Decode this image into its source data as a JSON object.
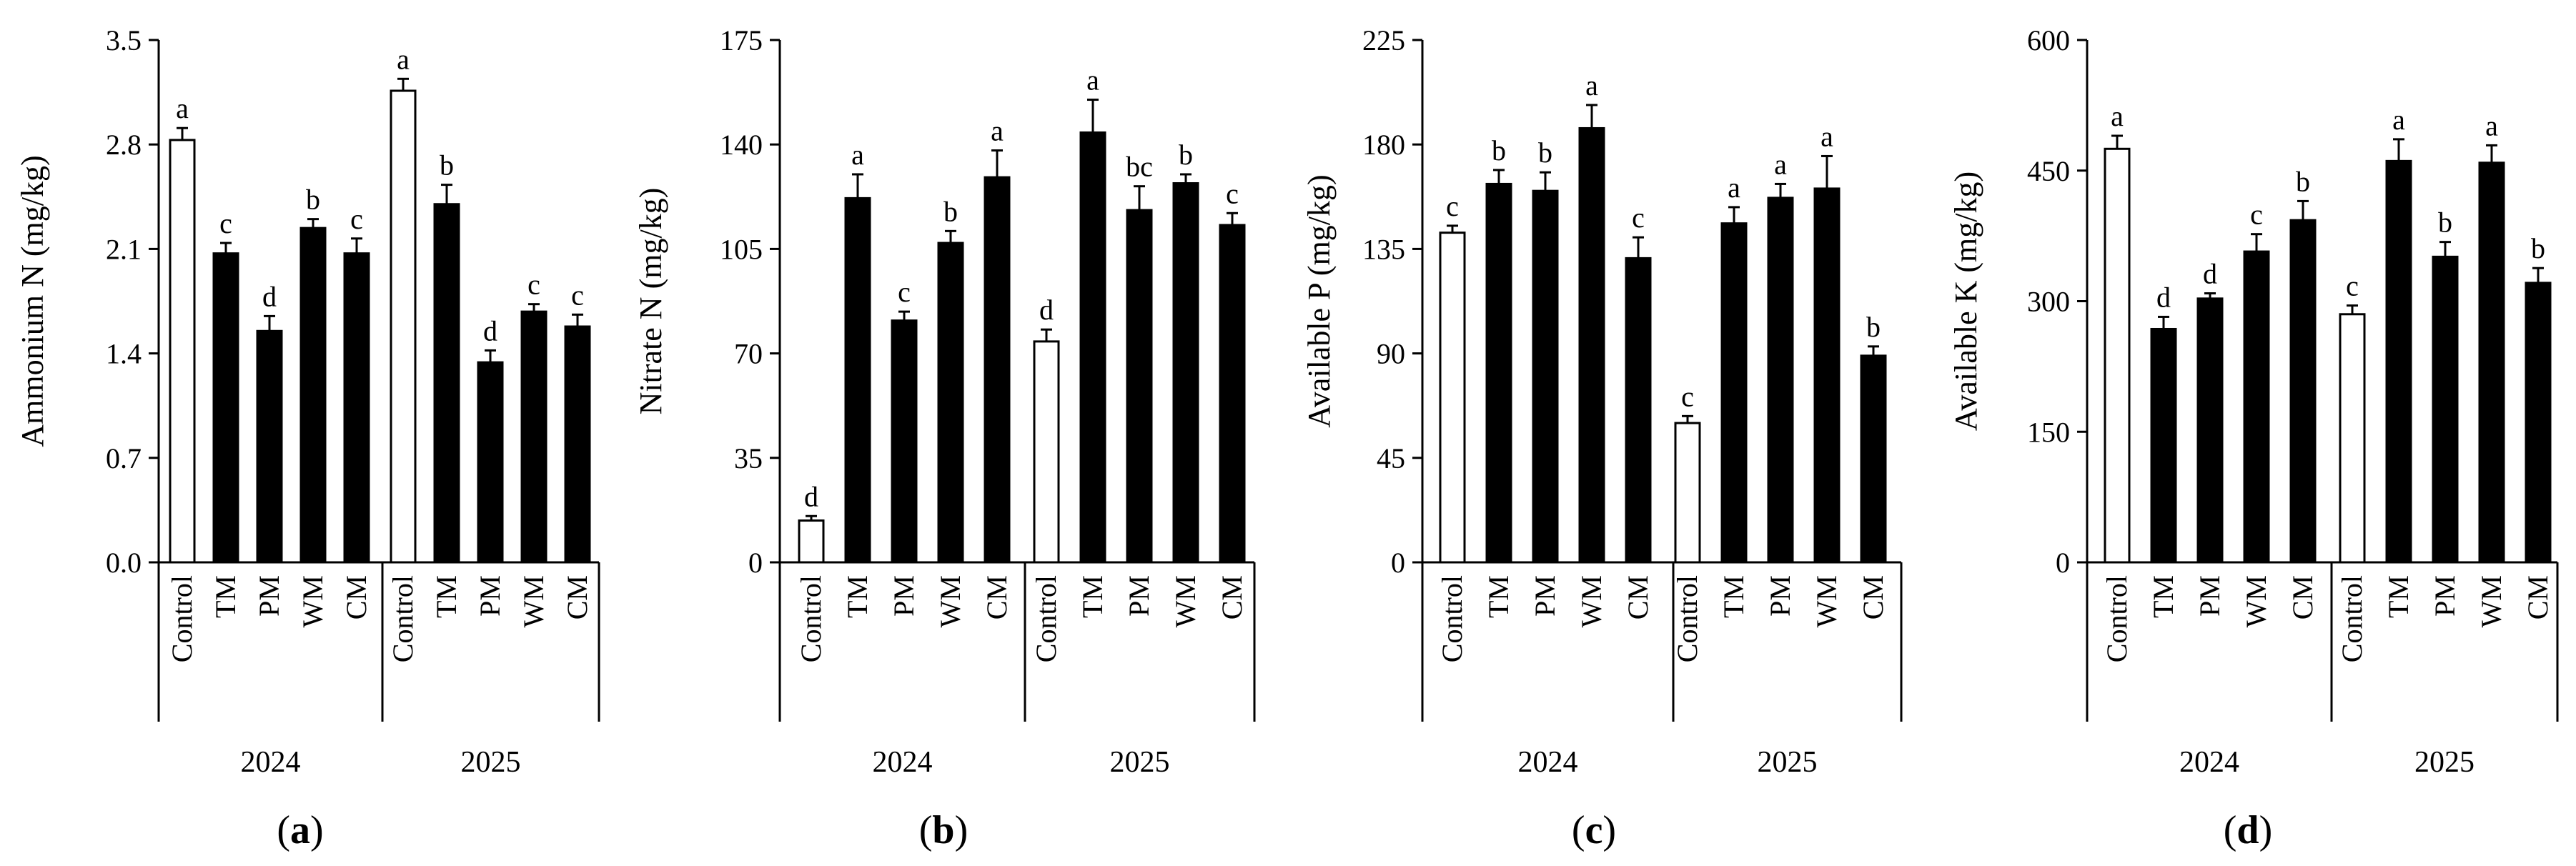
{
  "chart_data": [
    {
      "panel_label": "a",
      "type": "bar",
      "ylabel": "Ammonium N (mg/kg)",
      "ylim": [
        0,
        3.5
      ],
      "yticks": [
        "0.0",
        "0.7",
        "1.4",
        "2.1",
        "2.8",
        "3.5"
      ],
      "groups": [
        "2024",
        "2025"
      ],
      "categories": [
        "Control",
        "TM",
        "PM",
        "WM",
        "CM",
        "Control",
        "TM",
        "PM",
        "WM",
        "CM"
      ],
      "values": [
        2.83,
        2.07,
        1.55,
        2.24,
        2.07,
        3.16,
        2.4,
        1.34,
        1.68,
        1.58
      ],
      "errors": [
        0.08,
        0.07,
        0.1,
        0.06,
        0.1,
        0.08,
        0.13,
        0.08,
        0.05,
        0.08
      ],
      "letters": [
        "a",
        "c",
        "d",
        "b",
        "c",
        "a",
        "b",
        "d",
        "c",
        "c"
      ],
      "control_fill": [
        "white",
        "black",
        "black",
        "black",
        "black",
        "white",
        "black",
        "black",
        "black",
        "black"
      ]
    },
    {
      "panel_label": "b",
      "type": "bar",
      "ylabel": "Nitrate N (mg/kg)",
      "ylim": [
        0,
        175
      ],
      "yticks": [
        "0",
        "35",
        "70",
        "105",
        "140",
        "175"
      ],
      "groups": [
        "2024",
        "2025"
      ],
      "categories": [
        "Control",
        "TM",
        "PM",
        "WM",
        "CM",
        "Control",
        "TM",
        "PM",
        "WM",
        "CM"
      ],
      "values": [
        14,
        122,
        81,
        107,
        129,
        74,
        144,
        118,
        127,
        113
      ],
      "errors": [
        1.5,
        8,
        3,
        4,
        9,
        4,
        11,
        8,
        3,
        4
      ],
      "letters": [
        "d",
        "a",
        "c",
        "b",
        "a",
        "d",
        "a",
        "bc",
        "b",
        "c"
      ],
      "control_fill": [
        "white",
        "black",
        "black",
        "black",
        "black",
        "white",
        "black",
        "black",
        "black",
        "black"
      ]
    },
    {
      "panel_label": "c",
      "type": "bar",
      "ylabel": "Available P (mg/kg)",
      "ylim": [
        0,
        225
      ],
      "yticks": [
        "0",
        "45",
        "90",
        "135",
        "180",
        "225"
      ],
      "groups": [
        "2024",
        "2025"
      ],
      "categories": [
        "Control",
        "TM",
        "PM",
        "WM",
        "CM",
        "Control",
        "TM",
        "PM",
        "WM",
        "CM"
      ],
      "values": [
        142,
        163,
        160,
        187,
        131,
        60,
        146,
        157,
        161,
        89
      ],
      "errors": [
        3,
        6,
        8,
        10,
        9,
        3,
        7,
        6,
        14,
        4
      ],
      "letters": [
        "c",
        "b",
        "b",
        "a",
        "c",
        "c",
        "a",
        "a",
        "a",
        "b"
      ],
      "control_fill": [
        "white",
        "black",
        "black",
        "black",
        "black",
        "white",
        "black",
        "black",
        "black",
        "black"
      ]
    },
    {
      "panel_label": "d",
      "type": "bar",
      "ylabel": "Available K (mg/kg)",
      "ylim": [
        0,
        600
      ],
      "yticks": [
        "0",
        "150",
        "300",
        "450",
        "600"
      ],
      "groups": [
        "2024",
        "2025"
      ],
      "categories": [
        "Control",
        "TM",
        "PM",
        "WM",
        "CM",
        "Control",
        "TM",
        "PM",
        "WM",
        "CM"
      ],
      "values": [
        475,
        268,
        303,
        357,
        393,
        285,
        461,
        351,
        459,
        321
      ],
      "errors": [
        15,
        14,
        6,
        20,
        22,
        10,
        25,
        17,
        20,
        17
      ],
      "letters": [
        "a",
        "d",
        "d",
        "c",
        "b",
        "c",
        "a",
        "b",
        "a",
        "b"
      ],
      "control_fill": [
        "white",
        "black",
        "black",
        "black",
        "black",
        "white",
        "black",
        "black",
        "black",
        "black"
      ]
    }
  ]
}
